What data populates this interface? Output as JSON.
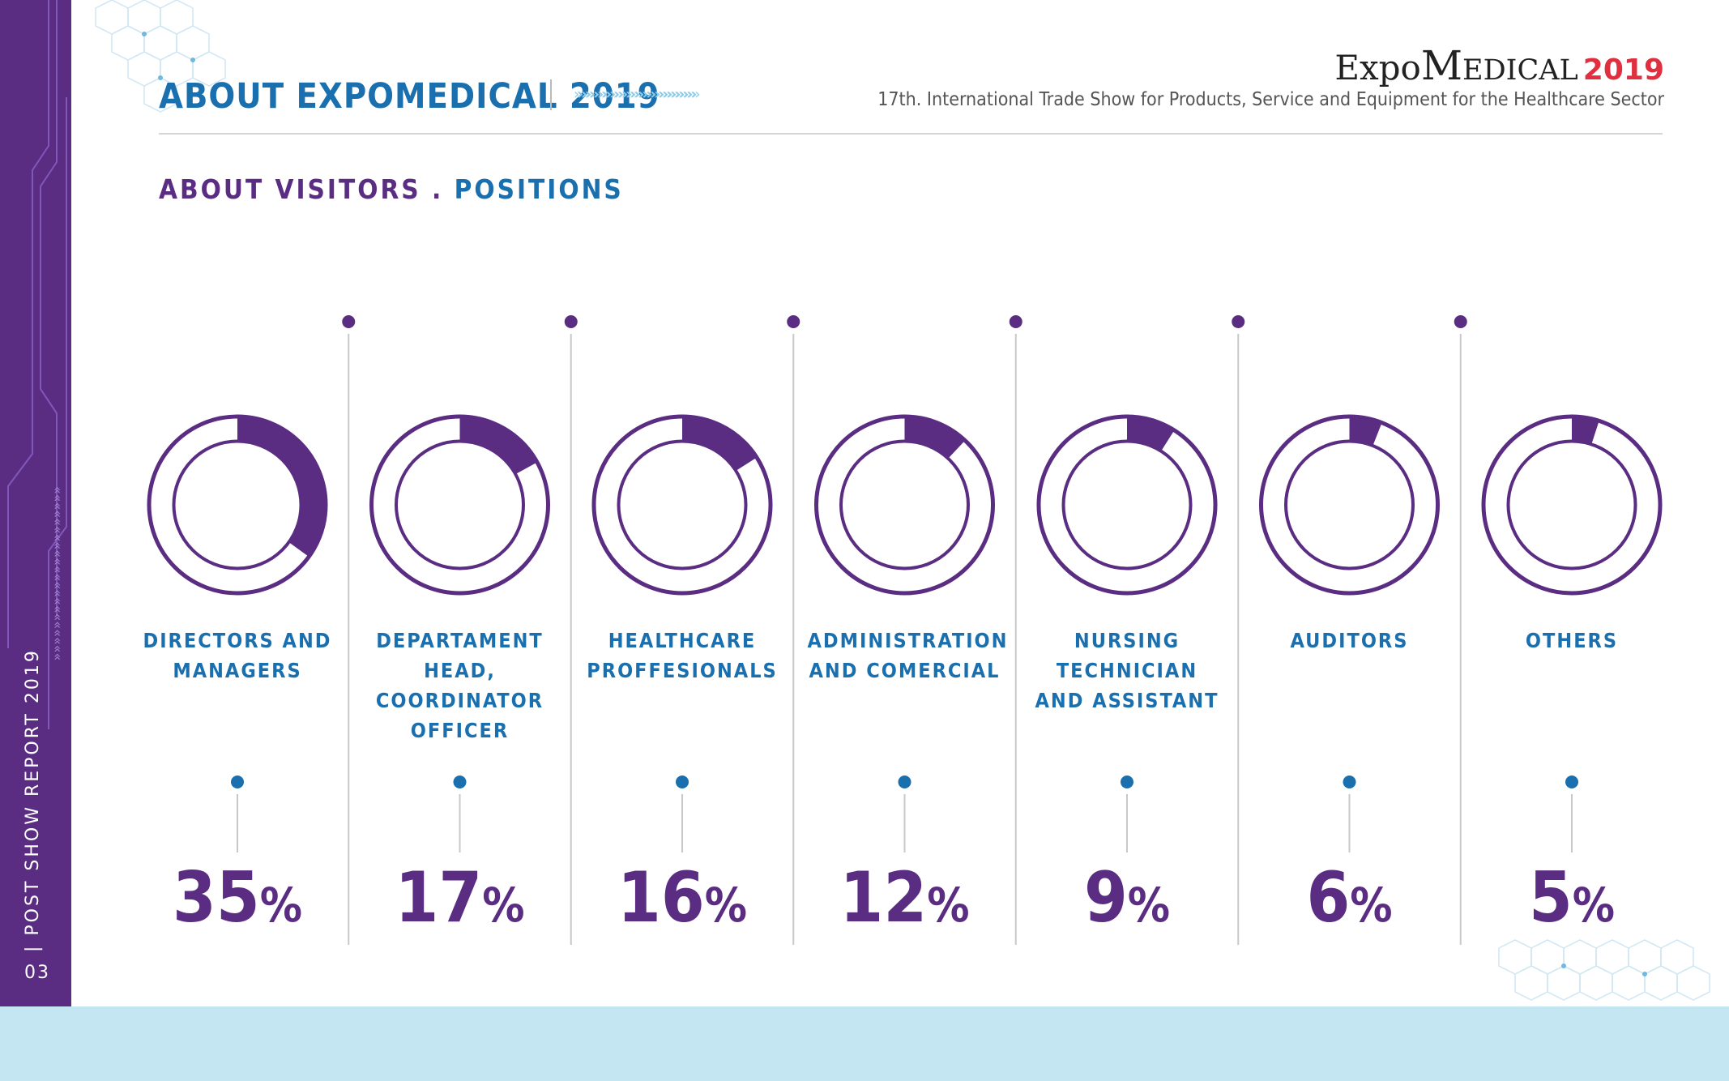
{
  "header": {
    "title": "ABOUT EXPOMEDICAL 2019",
    "chevrons": "»»»»»»»»»»»»»»»»»»»»»»»»»»»»»»",
    "logo_expo": "Expo",
    "logo_medical": "Medical",
    "logo_year": "2019",
    "subtitle": "17th. International Trade Show for Products, Service and Equipment for the Healthcare Sector"
  },
  "section": {
    "title_part1": "ABOUT VISITORS . ",
    "title_part2": "POSITIONS"
  },
  "sidebar": {
    "report_label": "|   POST SHOW REPORT 2019",
    "page_number": "03"
  },
  "colors": {
    "purple": "#5a2d83",
    "blue": "#1a6fae",
    "light_blue_band": "#c4e6f2"
  },
  "chart_data": {
    "type": "pie",
    "categories": [
      "DIRECTORS AND\nMANAGERS",
      "DEPARTAMENT\nHEAD,\nCOORDINATOR\nOFFICER",
      "HEALTHCARE\nPROFFESIONALS",
      "ADMINISTRATION\nAND COMERCIAL",
      "NURSING\nTECHNICIAN\nAND ASSISTANT",
      "AUDITORS",
      "OTHERS"
    ],
    "values": [
      35,
      17,
      16,
      12,
      9,
      6,
      5
    ],
    "unit": "%"
  }
}
